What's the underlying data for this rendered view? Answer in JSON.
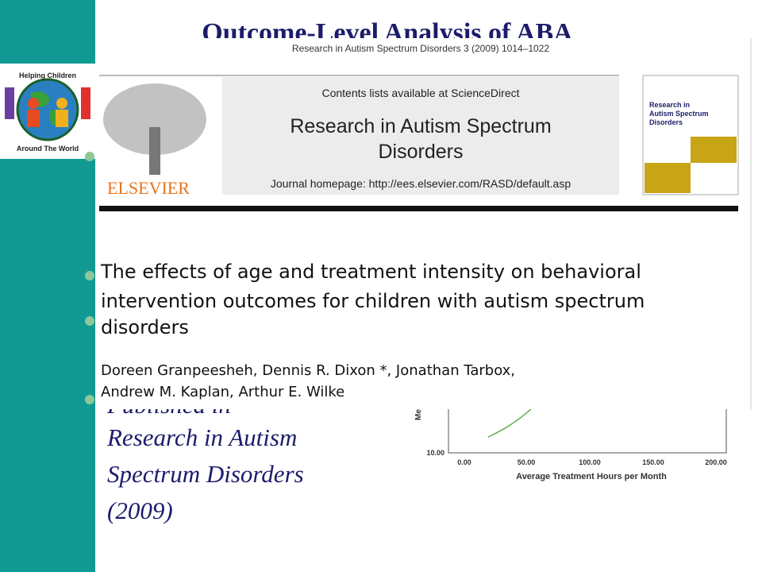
{
  "slide": {
    "title": "Outcome-Level Analysis of ABA",
    "logo": {
      "top": "Helping Children",
      "bottom": "Around The World"
    },
    "body": {
      "lines": [
        "Published in",
        "Research in Autism",
        "Spectrum Disorders",
        "(2009)"
      ]
    },
    "article": {
      "citation": "Research in Autism Spectrum Disorders 3 (2009) 1014–1022",
      "contents": "Contents lists available at ScienceDirect",
      "journal": [
        "Research in Autism Spectrum",
        "Disorders"
      ],
      "homepage": "Journal homepage: http://ees.elsevier.com/RASD/default.asp",
      "publisher": "ELSEVIER",
      "cover": [
        "Research in",
        "Autism Spectrum",
        "Disorders"
      ],
      "title": [
        "The effects of age and treatment intensity on behavioral",
        "intervention outcomes for children with autism spectrum",
        "disorders"
      ],
      "authors": [
        "Doreen Granpeesheh, Dennis R. Dixon *, Jonathan Tarbox,",
        "Andrew M. Kaplan, Arthur E. Wilke"
      ]
    },
    "graph": {
      "ylabel": "Me",
      "ytick": "10.00",
      "xticks": [
        "0.00",
        "50.00",
        "100.00",
        "150.00",
        "200.00"
      ],
      "xlabel": "Average Treatment Hours per Month"
    }
  }
}
